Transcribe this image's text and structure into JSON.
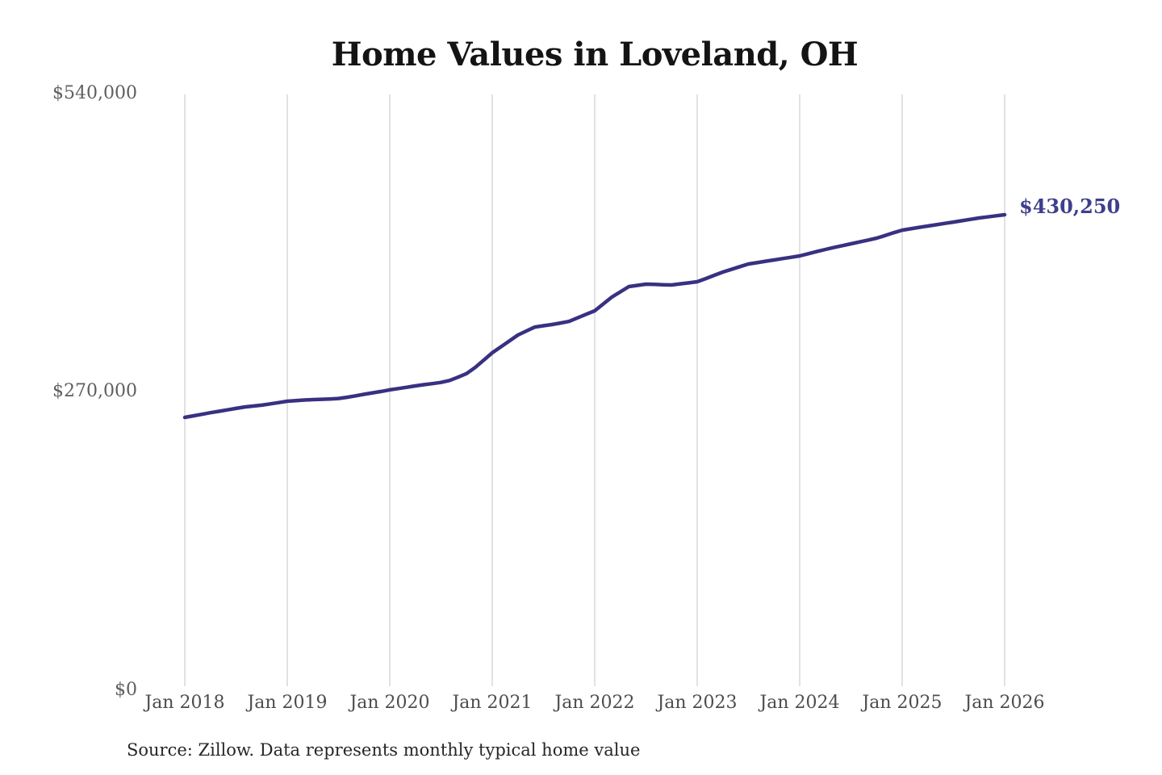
{
  "title": "Home Values in Loveland, OH",
  "source_note": "Source: Zillow. Data represents monthly typical home value",
  "end_value_label": "$430,250",
  "colors": {
    "line": "#383182",
    "end_label": "#3e3f8c",
    "gridline": "#c6c6c6",
    "title": "#141414",
    "y_axis_label": "#5f5f5f",
    "x_axis_label": "#4d4d4d",
    "source_text": "#262626",
    "background": "#ffffff"
  },
  "chart_data": {
    "type": "line",
    "title": "Home Values in Loveland, OH",
    "xlabel": "",
    "ylabel": "",
    "ylim": [
      0,
      540000
    ],
    "grid": "vertical-only",
    "legend": "none",
    "y_tick_labels": [
      "$540,000",
      "$270,000",
      "$0"
    ],
    "y_tick_values": [
      540000,
      270000,
      0
    ],
    "x_tick_labels": [
      "Jan 2018",
      "Jan 2019",
      "Jan 2020",
      "Jan 2021",
      "Jan 2022",
      "Jan 2023",
      "Jan 2024",
      "Jan 2025",
      "Jan 2026"
    ],
    "series": [
      {
        "name": "Monthly typical home value",
        "unit": "USD",
        "x_start": "2018-01",
        "x_interval": "month",
        "end_value": 430250,
        "end_value_label": "$430,250",
        "values": [
          246600,
          248000,
          249400,
          250800,
          252100,
          253400,
          254700,
          256000,
          256800,
          257600,
          258800,
          260000,
          261200,
          261800,
          262300,
          262700,
          263000,
          263300,
          263700,
          264800,
          266100,
          267500,
          268800,
          270100,
          271500,
          272700,
          273900,
          275100,
          276200,
          277200,
          278300,
          280000,
          283000,
          286300,
          291800,
          298400,
          305100,
          310500,
          315800,
          321200,
          324900,
          328500,
          329600,
          330700,
          332100,
          333600,
          336800,
          340000,
          343200,
          349400,
          355600,
          360400,
          365100,
          366200,
          367300,
          367100,
          366800,
          366600,
          367600,
          368500,
          369500,
          372400,
          375400,
          378300,
          380700,
          383200,
          385600,
          386800,
          388100,
          389300,
          390500,
          391700,
          392900,
          394900,
          396900,
          398800,
          400500,
          402200,
          403900,
          405600,
          407300,
          409000,
          411400,
          413900,
          416300,
          417500,
          418800,
          420000,
          421200,
          422400,
          423600,
          424800,
          426100,
          427300,
          428300,
          429300,
          430250
        ]
      }
    ]
  }
}
